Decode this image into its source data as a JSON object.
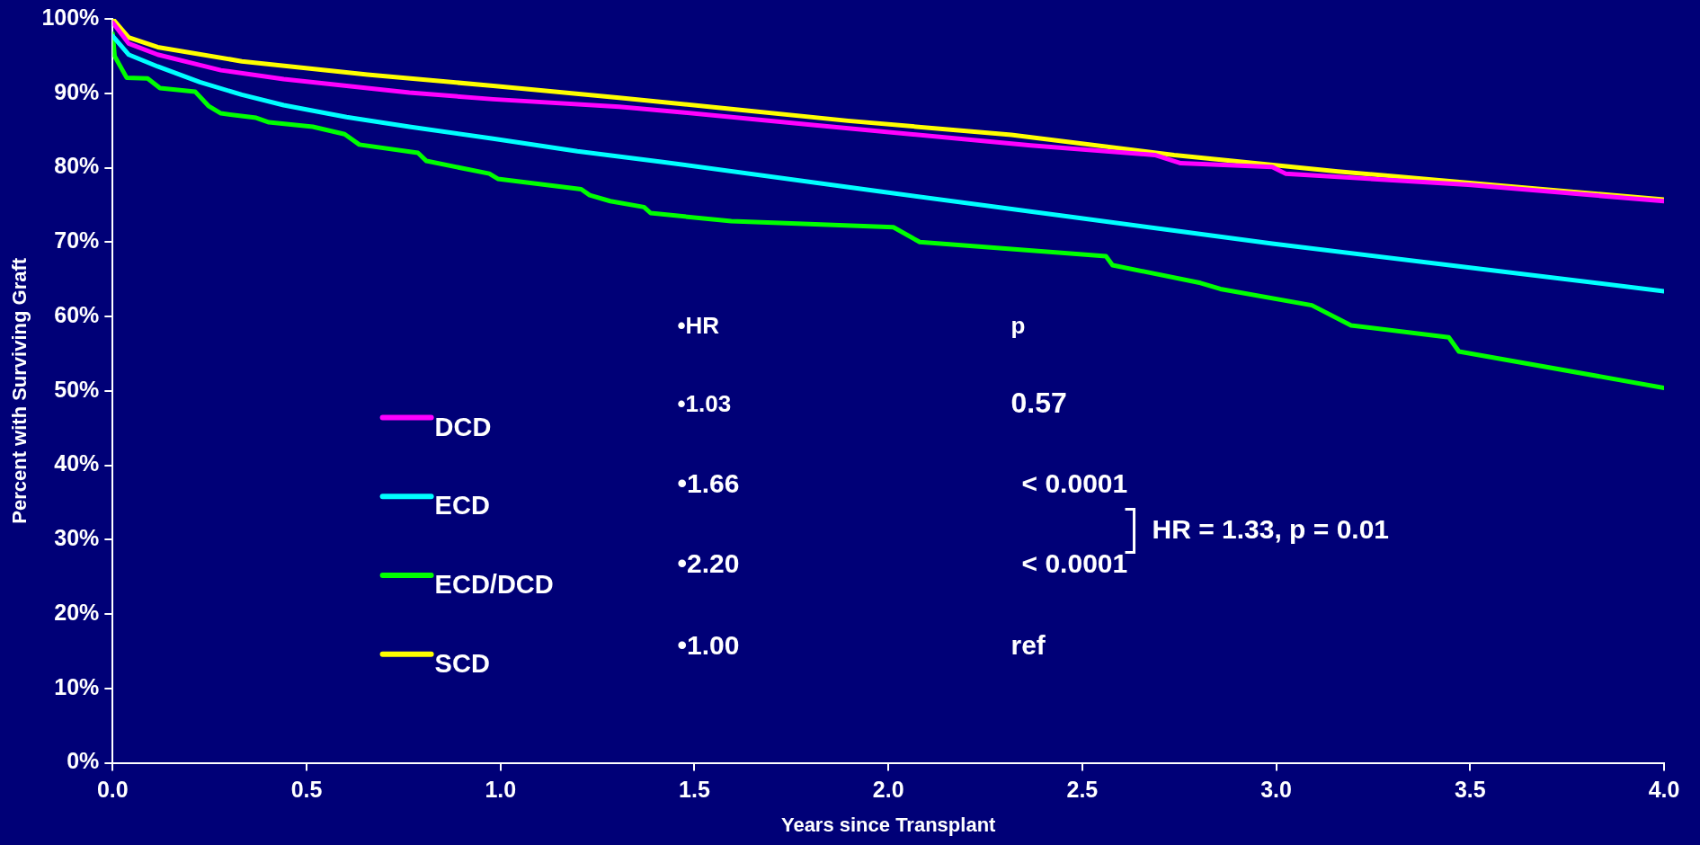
{
  "chart_data": {
    "type": "line",
    "xlabel": "Years since Transplant",
    "ylabel": "Percent with Surviving Graft",
    "xlim": [
      0,
      4
    ],
    "ylim": [
      0,
      100
    ],
    "xticks": [
      {
        "value": 0,
        "label": "0.0"
      },
      {
        "value": 0.5,
        "label": "0.5"
      },
      {
        "value": 1,
        "label": "1.0"
      },
      {
        "value": 1.5,
        "label": "1.5"
      },
      {
        "value": 2,
        "label": "2.0"
      },
      {
        "value": 2.5,
        "label": "2.5"
      },
      {
        "value": 3,
        "label": "3.0"
      },
      {
        "value": 3.5,
        "label": "3.5"
      },
      {
        "value": 4,
        "label": "4.0"
      }
    ],
    "yticks": [
      {
        "value": 0,
        "label": "0%"
      },
      {
        "value": 10,
        "label": "10%"
      },
      {
        "value": 20,
        "label": "20%"
      },
      {
        "value": 30,
        "label": "30%"
      },
      {
        "value": 40,
        "label": "40%"
      },
      {
        "value": 50,
        "label": "50%"
      },
      {
        "value": 60,
        "label": "60%"
      },
      {
        "value": 70,
        "label": "70%"
      },
      {
        "value": 80,
        "label": "80%"
      },
      {
        "value": 90,
        "label": "90%"
      },
      {
        "value": 100,
        "label": "100%"
      }
    ],
    "grid": false,
    "legend": "bottom left",
    "marker": "none",
    "line_style": "solid",
    "series": [
      {
        "name": "DCD",
        "color": "#ff00ff",
        "x": [
          0,
          0.041,
          0.116,
          0.225,
          0.279,
          0.441,
          0.603,
          0.765,
          0.981,
          1.306,
          1.475,
          1.811,
          2.367,
          2.687,
          2.754,
          2.99,
          3.024,
          3.495,
          4.0
        ],
        "values": [
          99.5,
          96.7,
          95.2,
          93.8,
          93.1,
          91.9,
          91.0,
          90.1,
          89.2,
          88.2,
          87.4,
          85.7,
          83.0,
          81.7,
          80.6,
          80.1,
          79.2,
          77.7,
          75.5
        ]
      },
      {
        "name": "ECD",
        "color": "#00ffff",
        "x": [
          0,
          0.041,
          0.116,
          0.225,
          0.333,
          0.441,
          0.603,
          0.765,
          0.981,
          1.198,
          1.414,
          1.979,
          2.484,
          2.99,
          3.495,
          4.0
        ],
        "values": [
          97.7,
          95.2,
          93.6,
          91.5,
          89.8,
          88.4,
          86.8,
          85.5,
          83.9,
          82.2,
          80.8,
          76.8,
          73.3,
          69.8,
          66.6,
          63.4
        ]
      },
      {
        "name": "ECD/DCD",
        "color": "#00ff00",
        "x": [
          0,
          0.005,
          0.036,
          0.09,
          0.122,
          0.213,
          0.247,
          0.279,
          0.37,
          0.403,
          0.516,
          0.598,
          0.636,
          0.787,
          0.809,
          0.971,
          0.993,
          1.208,
          1.23,
          1.283,
          1.37,
          1.387,
          1.595,
          2.013,
          2.081,
          2.561,
          2.578,
          2.805,
          2.856,
          3.092,
          3.193,
          3.445,
          3.471,
          4.0
        ],
        "values": [
          98,
          95,
          92.1,
          92,
          90.7,
          90.2,
          88.3,
          87.3,
          86.7,
          86.1,
          85.5,
          84.5,
          83.1,
          82.0,
          80.9,
          79.2,
          78.5,
          77.1,
          76.3,
          75.5,
          74.7,
          73.9,
          72.8,
          72.0,
          70.0,
          68.1,
          66.9,
          64.5,
          63.7,
          61.5,
          58.8,
          57.2,
          55.3,
          50.4
        ]
      },
      {
        "name": "SCD",
        "color": "#ffff00",
        "x": [
          0,
          0.041,
          0.116,
          0.333,
          0.657,
          0.981,
          1.306,
          1.595,
          1.896,
          2.317,
          2.737,
          3.159,
          3.579,
          4.0
        ],
        "values": [
          100,
          97.5,
          96.2,
          94.3,
          92.5,
          91.0,
          89.4,
          87.9,
          86.3,
          84.4,
          81.7,
          79.5,
          77.6,
          75.7
        ]
      }
    ],
    "annotations": [
      "•HR",
      "p",
      "•1.03",
      "0.57",
      "•1.66",
      "< 0.0001",
      "•2.20",
      "< 0.0001",
      "•1.00",
      "ref",
      "HR = 1.33, p = 0.01"
    ]
  }
}
